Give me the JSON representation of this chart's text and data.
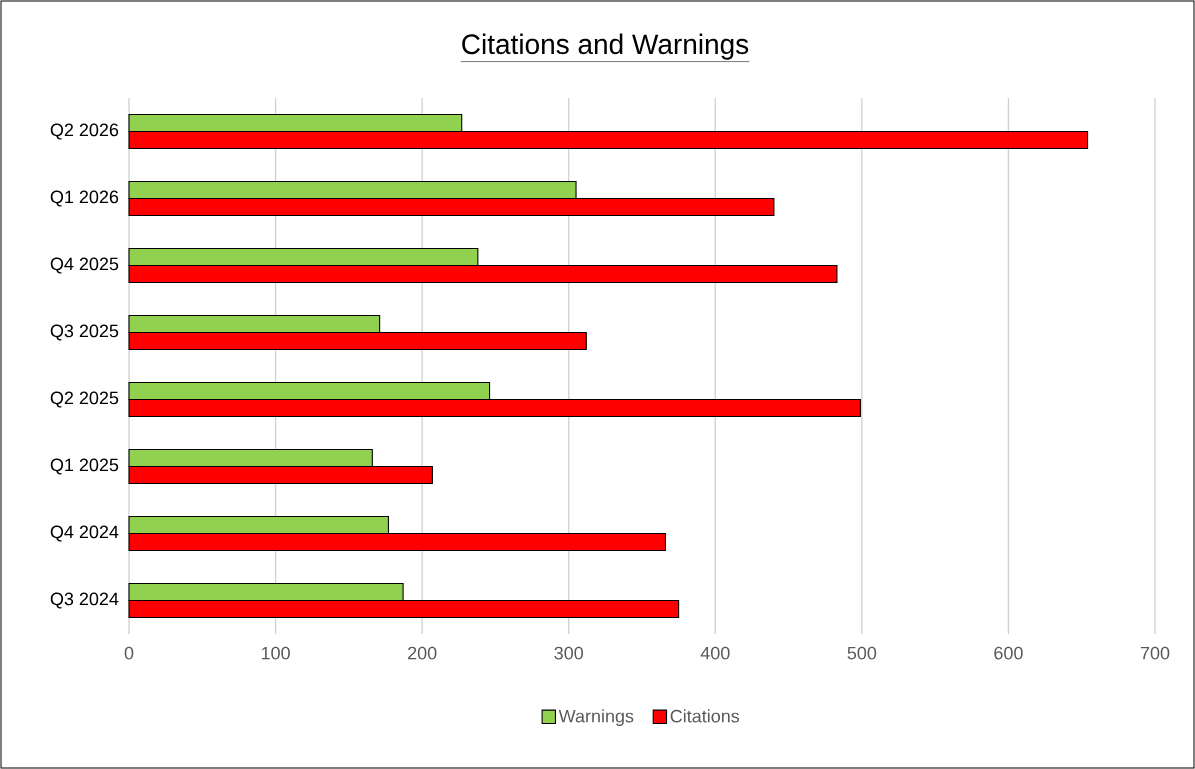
{
  "chart_data": {
    "type": "bar",
    "orientation": "horizontal",
    "title": "Citations and Warnings",
    "categories": [
      "Q2 2026",
      "Q1 2026",
      "Q4 2025",
      "Q3 2025",
      "Q2 2025",
      "Q1 2025",
      "Q4 2024",
      "Q3 2024"
    ],
    "series": [
      {
        "name": "Warnings",
        "color": "#92d050",
        "values": [
          227,
          305,
          238,
          171,
          246,
          166,
          177,
          187
        ]
      },
      {
        "name": "Citations",
        "color": "#ff0000",
        "values": [
          654,
          440,
          483,
          312,
          499,
          207,
          366,
          375
        ]
      }
    ],
    "xlim": [
      0,
      700
    ],
    "xticks": [
      0,
      100,
      200,
      300,
      400,
      500,
      600,
      700
    ],
    "grid": "x",
    "legend": "bottom"
  }
}
